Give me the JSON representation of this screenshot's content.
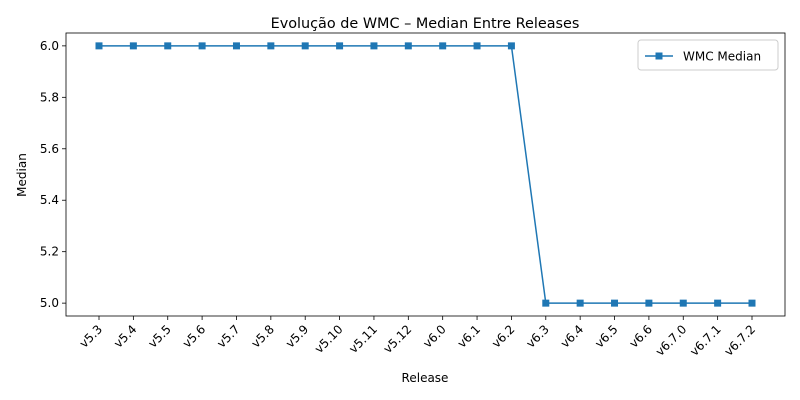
{
  "chart_data": {
    "type": "line",
    "title": "Evolução de WMC – Median Entre Releases",
    "xlabel": "Release",
    "ylabel": "Median",
    "categories": [
      "v5.3",
      "v5.4",
      "v5.5",
      "v5.6",
      "v5.7",
      "v5.8",
      "v5.9",
      "v5.10",
      "v5.11",
      "v5.12",
      "v6.0",
      "v6.1",
      "v6.2",
      "v6.3",
      "v6.4",
      "v6.5",
      "v6.6",
      "v6.7.0",
      "v6.7.1",
      "v6.7.2"
    ],
    "series": [
      {
        "name": "WMC Median",
        "values": [
          6,
          6,
          6,
          6,
          6,
          6,
          6,
          6,
          6,
          6,
          6,
          6,
          6,
          5,
          5,
          5,
          5,
          5,
          5,
          5
        ],
        "color": "#1f77b4",
        "marker": "square"
      }
    ],
    "ylim": [
      4.95,
      6.05
    ],
    "yticks": [
      "5.0",
      "5.2",
      "5.4",
      "5.6",
      "5.8",
      "6.0"
    ],
    "ytick_values": [
      5.0,
      5.2,
      5.4,
      5.6,
      5.8,
      6.0
    ],
    "grid": false,
    "legend_position": "top-right"
  }
}
